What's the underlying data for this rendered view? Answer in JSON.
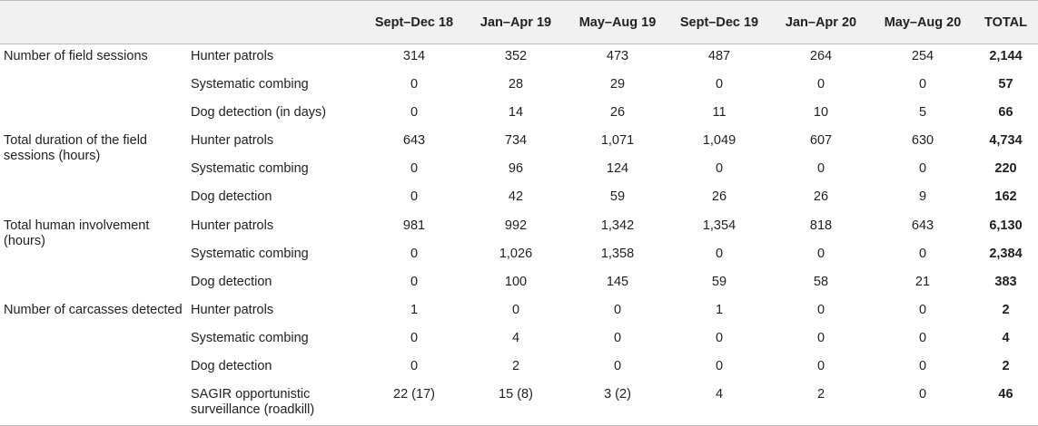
{
  "columns": [
    "",
    "",
    "Sept–Dec 18",
    "Jan–Apr 19",
    "May–Aug 19",
    "Sept–Dec 19",
    "Jan–Apr 20",
    "May–Aug 20",
    "TOTAL"
  ],
  "rows": [
    {
      "cat": "Number of field sessions",
      "sub": "Hunter patrols",
      "vals": [
        "314",
        "352",
        "473",
        "487",
        "264",
        "254"
      ],
      "total": "2,144"
    },
    {
      "cat": "",
      "sub": "Systematic combing",
      "vals": [
        "0",
        "28",
        "29",
        "0",
        "0",
        "0"
      ],
      "total": "57"
    },
    {
      "cat": "",
      "sub": "Dog detection (in days)",
      "vals": [
        "0",
        "14",
        "26",
        "11",
        "10",
        "5"
      ],
      "total": "66"
    },
    {
      "cat": "Total duration of the field sessions (hours)",
      "sub": "Hunter patrols",
      "vals": [
        "643",
        "734",
        "1,071",
        "1,049",
        "607",
        "630"
      ],
      "total": "4,734"
    },
    {
      "cat": "",
      "sub": "Systematic combing",
      "vals": [
        "0",
        "96",
        "124",
        "0",
        "0",
        "0"
      ],
      "total": "220"
    },
    {
      "cat": "",
      "sub": "Dog detection",
      "vals": [
        "0",
        "42",
        "59",
        "26",
        "26",
        "9"
      ],
      "total": "162"
    },
    {
      "cat": "Total human involvement (hours)",
      "sub": "Hunter patrols",
      "vals": [
        "981",
        "992",
        "1,342",
        "1,354",
        "818",
        "643"
      ],
      "total": "6,130"
    },
    {
      "cat": "",
      "sub": "Systematic combing",
      "vals": [
        "0",
        "1,026",
        "1,358",
        "0",
        "0",
        "0"
      ],
      "total": "2,384"
    },
    {
      "cat": "",
      "sub": "Dog detection",
      "vals": [
        "0",
        "100",
        "145",
        "59",
        "58",
        "21"
      ],
      "total": "383"
    },
    {
      "cat": "Number of carcasses detected",
      "sub": "Hunter patrols",
      "vals": [
        "1",
        "0",
        "0",
        "1",
        "0",
        "0"
      ],
      "total": "2"
    },
    {
      "cat": "",
      "sub": "Systematic combing",
      "vals": [
        "0",
        "4",
        "0",
        "0",
        "0",
        "0"
      ],
      "total": "4"
    },
    {
      "cat": "",
      "sub": "Dog detection",
      "vals": [
        "0",
        "2",
        "0",
        "0",
        "0",
        "0"
      ],
      "total": "2"
    },
    {
      "cat": "",
      "sub": "SAGIR opportunistic surveillance (roadkill)",
      "vals": [
        "22 (17)",
        "15 (8)",
        "3 (2)",
        "4",
        "2",
        "0"
      ],
      "total": "46"
    }
  ]
}
